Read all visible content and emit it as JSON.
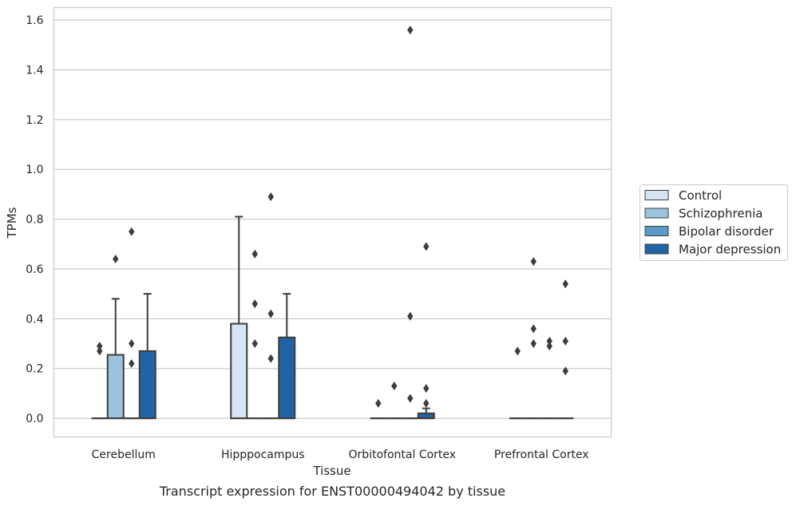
{
  "caption": "Transcript expression for ENST00000494042 by tissue",
  "chart_data": {
    "type": "box",
    "xlabel": "Tissue",
    "ylabel": "TPMs",
    "ylim": [
      -0.075,
      1.65
    ],
    "yticks": [
      "0.0",
      "0.2",
      "0.4",
      "0.6",
      "0.8",
      "1.0",
      "1.2",
      "1.4",
      "1.6"
    ],
    "grid": "horizontal",
    "legend_position": "right",
    "categories": [
      "Cerebellum",
      "Hipppocampus",
      "Orbitofontal Cortex",
      "Prefrontal Cortex"
    ],
    "series": [
      {
        "name": "Control",
        "color": "#d6e5f4",
        "boxes": [
          {
            "q1": 0,
            "median": 0,
            "q3": 0,
            "whisker_low": 0,
            "whisker_high": 0,
            "outliers": [
              0.29,
              0.27
            ]
          },
          {
            "q1": 0,
            "median": 0,
            "q3": 0.38,
            "whisker_low": 0,
            "whisker_high": 0.81,
            "outliers": []
          },
          {
            "q1": 0,
            "median": 0,
            "q3": 0,
            "whisker_low": 0,
            "whisker_high": 0,
            "outliers": [
              0.06
            ]
          },
          {
            "q1": 0,
            "median": 0,
            "q3": 0,
            "whisker_low": 0,
            "whisker_high": 0,
            "outliers": [
              0.27
            ]
          }
        ]
      },
      {
        "name": "Schizophrenia",
        "color": "#9bc3dd",
        "boxes": [
          {
            "q1": 0,
            "median": 0,
            "q3": 0.255,
            "whisker_low": 0,
            "whisker_high": 0.48,
            "outliers": [
              0.64
            ]
          },
          {
            "q1": 0,
            "median": 0,
            "q3": 0,
            "whisker_low": 0,
            "whisker_high": 0,
            "outliers": [
              0.66,
              0.46,
              0.3
            ]
          },
          {
            "q1": 0,
            "median": 0,
            "q3": 0,
            "whisker_low": 0,
            "whisker_high": 0,
            "outliers": [
              0.13
            ]
          },
          {
            "q1": 0,
            "median": 0,
            "q3": 0,
            "whisker_low": 0,
            "whisker_high": 0,
            "outliers": [
              0.63,
              0.36,
              0.3
            ]
          }
        ]
      },
      {
        "name": "Bipolar disorder",
        "color": "#5a9ac8",
        "boxes": [
          {
            "q1": 0,
            "median": 0,
            "q3": 0,
            "whisker_low": 0,
            "whisker_high": 0,
            "outliers": [
              0.75,
              0.3,
              0.22
            ]
          },
          {
            "q1": 0,
            "median": 0,
            "q3": 0,
            "whisker_low": 0,
            "whisker_high": 0,
            "outliers": [
              0.89,
              0.42,
              0.24
            ]
          },
          {
            "q1": 0,
            "median": 0,
            "q3": 0,
            "whisker_low": 0,
            "whisker_high": 0,
            "outliers": [
              1.56,
              0.41,
              0.08
            ]
          },
          {
            "q1": 0,
            "median": 0,
            "q3": 0,
            "whisker_low": 0,
            "whisker_high": 0,
            "outliers": [
              0.31,
              0.29
            ]
          }
        ]
      },
      {
        "name": "Major depression",
        "color": "#2163a5",
        "boxes": [
          {
            "q1": 0,
            "median": 0,
            "q3": 0.27,
            "whisker_low": 0,
            "whisker_high": 0.5,
            "outliers": []
          },
          {
            "q1": 0,
            "median": 0,
            "q3": 0.325,
            "whisker_low": 0,
            "whisker_high": 0.5,
            "outliers": []
          },
          {
            "q1": 0,
            "median": 0,
            "q3": 0.02,
            "whisker_low": 0,
            "whisker_high": 0.04,
            "outliers": [
              0.69,
              0.12,
              0.06
            ]
          },
          {
            "q1": 0,
            "median": 0,
            "q3": 0,
            "whisker_low": 0,
            "whisker_high": 0,
            "outliers": [
              0.54,
              0.31,
              0.19
            ]
          }
        ]
      }
    ]
  }
}
